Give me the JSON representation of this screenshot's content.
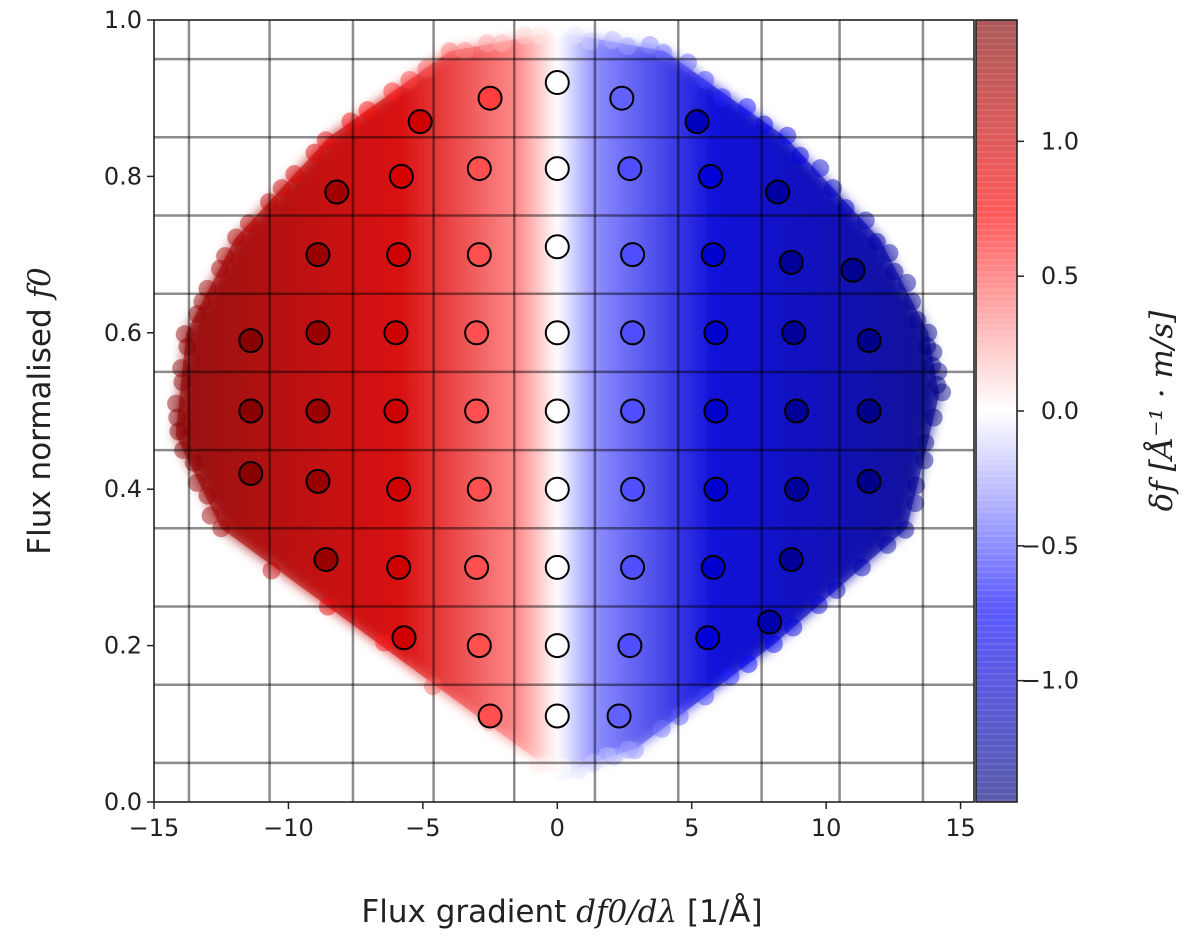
{
  "chart_data": {
    "type": "scatter",
    "title": "",
    "xlabel": "Flux gradient",
    "xlabel_math": "df0/dλ",
    "xlabel_unit": "[1/Å]",
    "ylabel": "Flux normalised",
    "ylabel_math": "f0",
    "xlim": [
      -15,
      15.5
    ],
    "ylim": [
      0.0,
      1.0
    ],
    "xticks": [
      -15,
      -10,
      -5,
      0,
      5,
      10,
      15
    ],
    "xtick_labels": [
      "−15",
      "−10",
      "−5",
      "0",
      "5",
      "10",
      "15"
    ],
    "yticks": [
      0.0,
      0.2,
      0.4,
      0.6,
      0.8,
      1.0
    ],
    "ytick_labels": [
      "0.0",
      "0.2",
      "0.4",
      "0.6",
      "0.8",
      "1.0"
    ],
    "grid_lines_x": [
      -13.7,
      -10.7,
      -7.6,
      -4.6,
      -1.6,
      1.4,
      4.5,
      7.6,
      10.5,
      13.6
    ],
    "grid_lines_y": [
      0.05,
      0.15,
      0.25,
      0.35,
      0.45,
      0.55,
      0.65,
      0.75,
      0.85,
      0.95
    ],
    "colorbar": {
      "label": "δf [Å⁻¹ · m/s]",
      "range": [
        -1.45,
        1.45
      ],
      "ticks": [
        1.0,
        0.5,
        0.0,
        -0.5,
        -1.0
      ],
      "tick_labels": [
        "1.0",
        "0.5",
        "0.0",
        "−0.5",
        "−1.0"
      ],
      "cmap": "seismic_r",
      "colors": {
        "max": "#7f0000",
        "high": "#ff0000",
        "mid": "#ffffff",
        "low": "#0000ff",
        "min": "#00007f"
      }
    },
    "scatter_cloud": {
      "description_color": "dense cloud of translucent points colored by δf, red for negative gradient, blue for positive gradient",
      "envelope": [
        [
          -0.6,
          0.05
        ],
        [
          -12.5,
          0.35
        ],
        [
          -14.2,
          0.47
        ],
        [
          -13.8,
          0.6
        ],
        [
          -12.0,
          0.72
        ],
        [
          -8.5,
          0.85
        ],
        [
          -4.0,
          0.96
        ],
        [
          0.0,
          0.985
        ],
        [
          4.0,
          0.96
        ],
        [
          8.5,
          0.85
        ],
        [
          12.0,
          0.72
        ],
        [
          13.8,
          0.6
        ],
        [
          14.2,
          0.52
        ],
        [
          13.0,
          0.35
        ],
        [
          8.0,
          0.2
        ],
        [
          3.0,
          0.07
        ],
        [
          0.5,
          0.04
        ]
      ]
    },
    "marked_points": [
      {
        "x": 0.0,
        "y": 0.92,
        "c": 0.0
      },
      {
        "x": -2.5,
        "y": 0.9,
        "c": 0.55
      },
      {
        "x": 2.4,
        "y": 0.9,
        "c": -0.45
      },
      {
        "x": -5.1,
        "y": 0.87,
        "c": 1.0
      },
      {
        "x": 5.2,
        "y": 0.87,
        "c": -1.1
      },
      {
        "x": -8.2,
        "y": 0.78,
        "c": 1.25
      },
      {
        "x": -5.8,
        "y": 0.8,
        "c": 0.95
      },
      {
        "x": -2.9,
        "y": 0.81,
        "c": 0.5
      },
      {
        "x": 0.0,
        "y": 0.81,
        "c": 0.0
      },
      {
        "x": 2.7,
        "y": 0.81,
        "c": -0.5
      },
      {
        "x": 5.7,
        "y": 0.8,
        "c": -0.95
      },
      {
        "x": 8.2,
        "y": 0.78,
        "c": -1.25
      },
      {
        "x": -8.9,
        "y": 0.7,
        "c": 1.3
      },
      {
        "x": -5.9,
        "y": 0.7,
        "c": 1.0
      },
      {
        "x": -2.9,
        "y": 0.7,
        "c": 0.5
      },
      {
        "x": 0.0,
        "y": 0.71,
        "c": 0.0
      },
      {
        "x": 2.8,
        "y": 0.7,
        "c": -0.5
      },
      {
        "x": 5.8,
        "y": 0.7,
        "c": -1.0
      },
      {
        "x": 8.7,
        "y": 0.69,
        "c": -1.3
      },
      {
        "x": 11.0,
        "y": 0.68,
        "c": -1.35
      },
      {
        "x": -11.4,
        "y": 0.59,
        "c": 1.4
      },
      {
        "x": -8.9,
        "y": 0.6,
        "c": 1.3
      },
      {
        "x": -6.0,
        "y": 0.6,
        "c": 1.0
      },
      {
        "x": -3.0,
        "y": 0.6,
        "c": 0.5
      },
      {
        "x": 0.0,
        "y": 0.6,
        "c": 0.0
      },
      {
        "x": 2.8,
        "y": 0.6,
        "c": -0.5
      },
      {
        "x": 5.9,
        "y": 0.6,
        "c": -1.0
      },
      {
        "x": 8.8,
        "y": 0.6,
        "c": -1.3
      },
      {
        "x": 11.6,
        "y": 0.59,
        "c": -1.4
      },
      {
        "x": -11.4,
        "y": 0.5,
        "c": 1.4
      },
      {
        "x": -8.9,
        "y": 0.5,
        "c": 1.3
      },
      {
        "x": -6.0,
        "y": 0.5,
        "c": 1.0
      },
      {
        "x": -3.0,
        "y": 0.5,
        "c": 0.5
      },
      {
        "x": 0.0,
        "y": 0.5,
        "c": 0.0
      },
      {
        "x": 2.8,
        "y": 0.5,
        "c": -0.5
      },
      {
        "x": 5.9,
        "y": 0.5,
        "c": -1.0
      },
      {
        "x": 8.9,
        "y": 0.5,
        "c": -1.3
      },
      {
        "x": 11.6,
        "y": 0.5,
        "c": -1.4
      },
      {
        "x": -11.4,
        "y": 0.42,
        "c": 1.4
      },
      {
        "x": -8.9,
        "y": 0.41,
        "c": 1.3
      },
      {
        "x": -5.9,
        "y": 0.4,
        "c": 1.0
      },
      {
        "x": -2.9,
        "y": 0.4,
        "c": 0.5
      },
      {
        "x": 0.0,
        "y": 0.4,
        "c": 0.0
      },
      {
        "x": 2.8,
        "y": 0.4,
        "c": -0.5
      },
      {
        "x": 5.9,
        "y": 0.4,
        "c": -1.0
      },
      {
        "x": 8.9,
        "y": 0.4,
        "c": -1.3
      },
      {
        "x": 11.6,
        "y": 0.41,
        "c": -1.4
      },
      {
        "x": -8.6,
        "y": 0.31,
        "c": 1.3
      },
      {
        "x": -5.9,
        "y": 0.3,
        "c": 1.0
      },
      {
        "x": -3.0,
        "y": 0.3,
        "c": 0.5
      },
      {
        "x": 0.0,
        "y": 0.3,
        "c": 0.0
      },
      {
        "x": 2.8,
        "y": 0.3,
        "c": -0.5
      },
      {
        "x": 5.8,
        "y": 0.3,
        "c": -1.0
      },
      {
        "x": 8.7,
        "y": 0.31,
        "c": -1.3
      },
      {
        "x": -5.7,
        "y": 0.21,
        "c": 1.0
      },
      {
        "x": -2.9,
        "y": 0.2,
        "c": 0.5
      },
      {
        "x": 0.0,
        "y": 0.2,
        "c": 0.0
      },
      {
        "x": 2.7,
        "y": 0.2,
        "c": -0.5
      },
      {
        "x": 5.6,
        "y": 0.21,
        "c": -0.95
      },
      {
        "x": 7.9,
        "y": 0.23,
        "c": -1.2
      },
      {
        "x": -2.5,
        "y": 0.11,
        "c": 0.5
      },
      {
        "x": 0.0,
        "y": 0.11,
        "c": 0.0
      },
      {
        "x": 2.3,
        "y": 0.11,
        "c": -0.45
      }
    ]
  }
}
